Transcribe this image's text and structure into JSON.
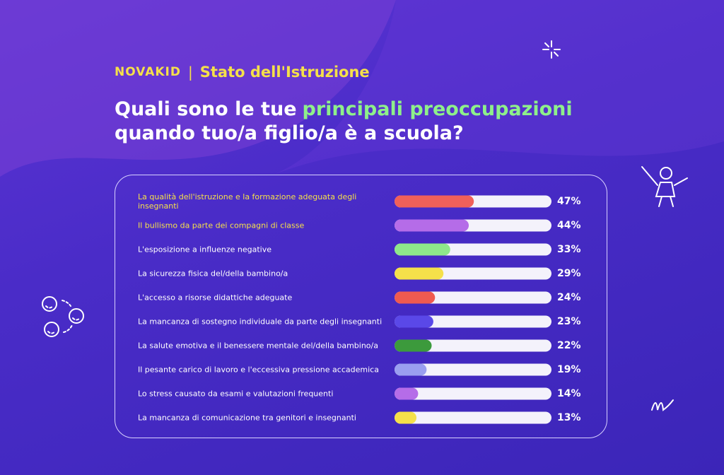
{
  "brand": "NOVAKID",
  "section": "Stato dell'Istruzione",
  "chart_data": {
    "type": "bar",
    "orientation": "horizontal",
    "title_parts": [
      {
        "text": "Quali sono le tue",
        "color": "#ffffff"
      },
      {
        "text": "principali preoccupazioni",
        "color": "#8ef08a"
      },
      {
        "text": "quando tuo/a figlio/a è a scuola?",
        "color": "#ffffff"
      }
    ],
    "categories": [
      "La qualità dell'istruzione e la formazione adeguata degli insegnanti",
      "Il bullismo da parte dei compagni di classe",
      "L'esposizione a influenze negative",
      "La sicurezza fisica del/della bambino/a",
      "L'accesso a risorse didattiche adeguate",
      "La mancanza di sostegno individuale da parte degli insegnanti",
      "La salute emotiva e il benessere mentale del/della bambino/a",
      "Il pesante carico di lavoro e l'eccessiva pressione accademica",
      "Lo stress causato da esami e valutazioni frequenti",
      "La mancanza di comunicazione tra genitori e insegnanti"
    ],
    "values": [
      47,
      44,
      33,
      29,
      24,
      23,
      22,
      19,
      14,
      13
    ],
    "value_labels": [
      "47%",
      "44%",
      "33%",
      "29%",
      "24%",
      "23%",
      "22%",
      "19%",
      "14%",
      "13%"
    ],
    "colors": [
      "#f0605a",
      "#b56ce8",
      "#8ee88a",
      "#f5e04a",
      "#ef5a50",
      "#5a48e8",
      "#3c9a3c",
      "#9a9ef0",
      "#b56ce8",
      "#f5e04a"
    ],
    "label_colors": [
      "#f5e04a",
      "#f5e04a",
      "#ffffff",
      "#ffffff",
      "#ffffff",
      "#ffffff",
      "#ffffff",
      "#ffffff",
      "#ffffff",
      "#ffffff"
    ],
    "xlim": [
      0,
      93
    ]
  }
}
